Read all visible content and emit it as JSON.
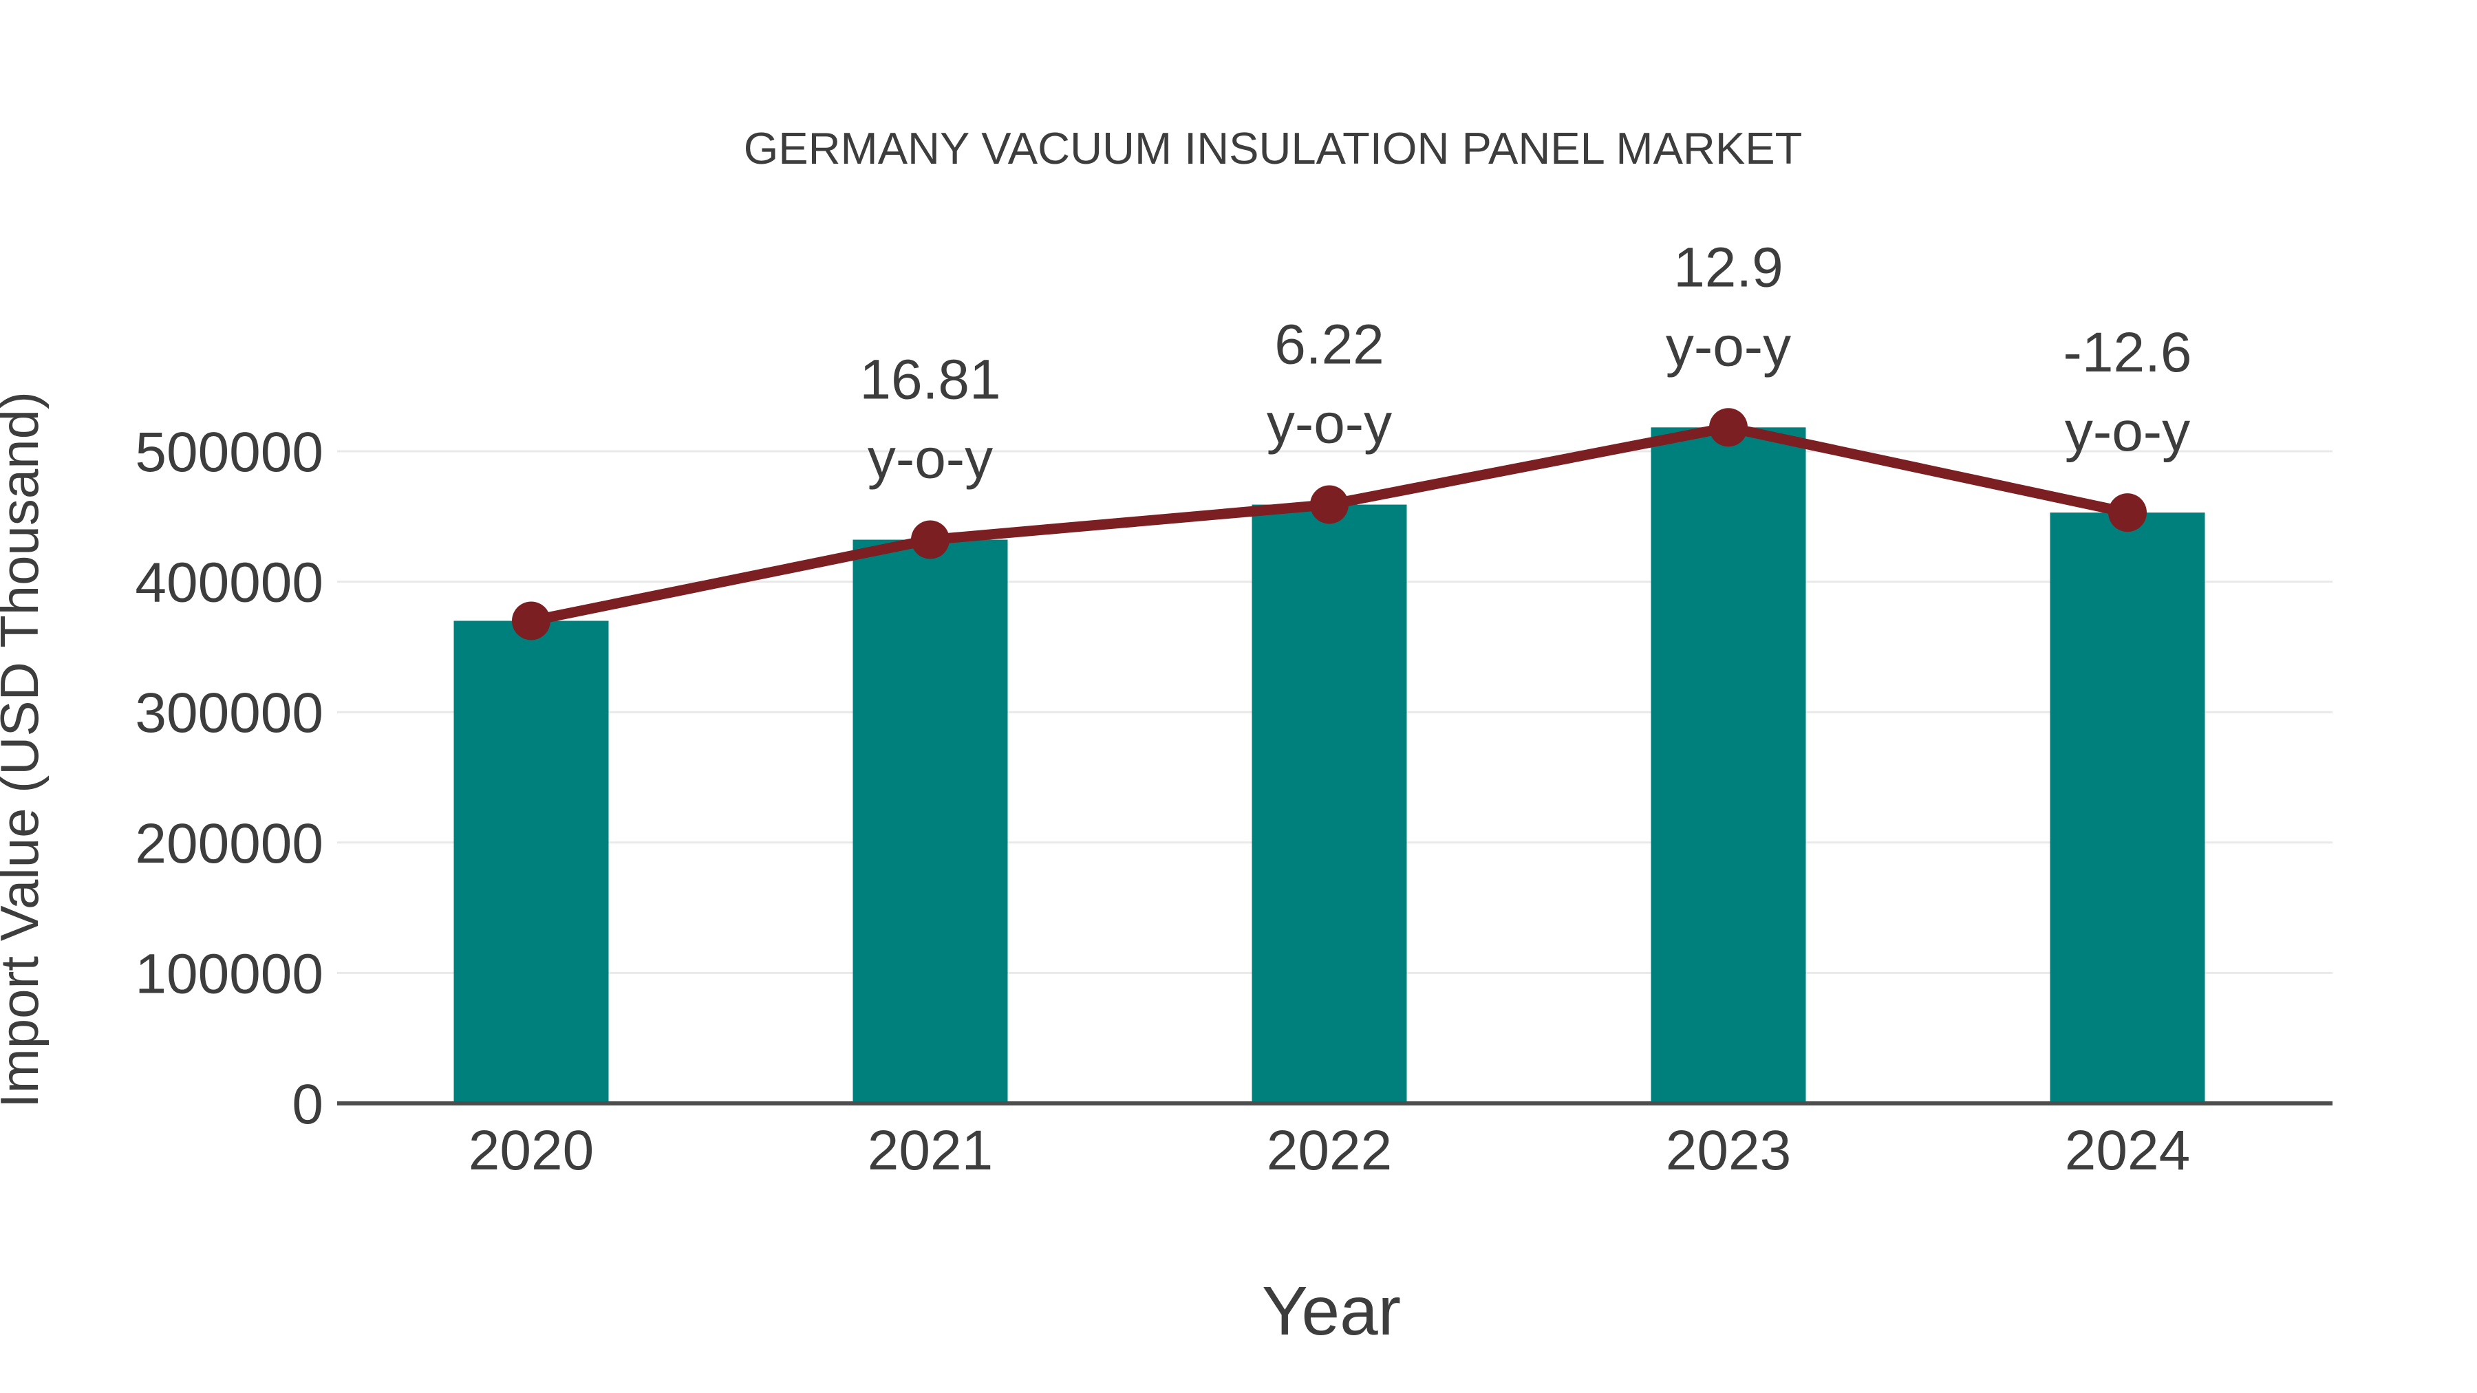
{
  "page": {
    "background_color": "#ffffff"
  },
  "chart_data": {
    "type": "bar",
    "title": "GERMANY VACUUM INSULATION PANEL MARKET",
    "xlabel": "Year",
    "ylabel": "Import Value (USD Thousand)",
    "categories": [
      "2020",
      "2021",
      "2022",
      "2023",
      "2024"
    ],
    "series": [
      {
        "name": "Import Value (USD Thousand)",
        "type": "bar",
        "color": "#00807d",
        "values": [
          370000,
          432200,
          459100,
          518300,
          453000
        ]
      },
      {
        "name": "y-o-y trend",
        "type": "line",
        "color": "#7c1f22",
        "values": [
          370000,
          432200,
          459100,
          518300,
          453000
        ]
      }
    ],
    "annotations": [
      {
        "category": "2021",
        "value_label": "16.81",
        "unit_label": "y-o-y"
      },
      {
        "category": "2022",
        "value_label": "6.22",
        "unit_label": "y-o-y"
      },
      {
        "category": "2023",
        "value_label": "12.9",
        "unit_label": "y-o-y"
      },
      {
        "category": "2024",
        "value_label": "-12.6",
        "unit_label": "y-o-y"
      }
    ],
    "ylim": [
      0,
      550000
    ],
    "yticks": [
      0,
      100000,
      200000,
      300000,
      400000,
      500000
    ],
    "grid": true,
    "legend_position": "none",
    "text_color": "#3d3d3d",
    "gridline_color": "#e9e9e9",
    "axis_line_color": "#4d4d4d"
  }
}
